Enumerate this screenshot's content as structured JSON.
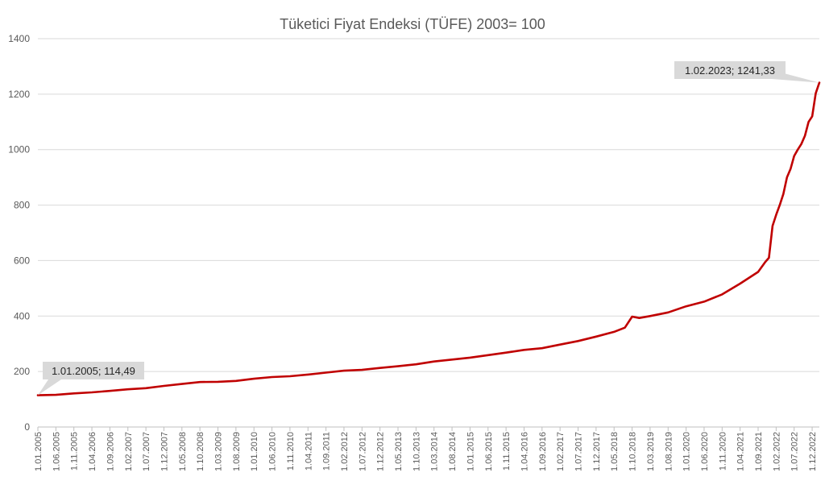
{
  "chart_data": {
    "type": "line",
    "title": "Tüketici Fiyat Endeksi (TÜFE) 2003= 100",
    "xlabel": "",
    "ylabel": "",
    "ylim": [
      0,
      1400
    ],
    "y_ticks": [
      0,
      200,
      400,
      600,
      800,
      1000,
      1200,
      1400
    ],
    "x_tick_labels": [
      "1.01.2005",
      "1.06.2005",
      "1.11.2005",
      "1.04.2006",
      "1.09.2006",
      "1.02.2007",
      "1.07.2007",
      "1.12.2007",
      "1.05.2008",
      "1.10.2008",
      "1.03.2009",
      "1.08.2009",
      "1.01.2010",
      "1.06.2010",
      "1.11.2010",
      "1.04.2011",
      "1.09.2011",
      "1.02.2012",
      "1.07.2012",
      "1.12.2012",
      "1.05.2013",
      "1.10.2013",
      "1.03.2014",
      "1.08.2014",
      "1.01.2015",
      "1.06.2015",
      "1.11.2015",
      "1.04.2016",
      "1.09.2016",
      "1.02.2017",
      "1.07.2017",
      "1.12.2017",
      "1.05.2018",
      "1.10.2018",
      "1.03.2019",
      "1.08.2019",
      "1.01.2020",
      "1.06.2020",
      "1.11.2020",
      "1.04.2021",
      "1.09.2021",
      "1.02.2022",
      "1.07.2022",
      "1.12.2022"
    ],
    "grid": true,
    "legend": "none",
    "line_color": "#c00000",
    "series": [
      {
        "x": [
          "1.01.2005",
          "1.06.2005",
          "1.11.2005",
          "1.04.2006",
          "1.09.2006",
          "1.02.2007",
          "1.07.2007",
          "1.12.2007",
          "1.05.2008",
          "1.10.2008",
          "1.03.2009",
          "1.08.2009",
          "1.01.2010",
          "1.06.2010",
          "1.11.2010",
          "1.04.2011",
          "1.09.2011",
          "1.02.2012",
          "1.07.2012",
          "1.12.2012",
          "1.05.2013",
          "1.10.2013",
          "1.03.2014",
          "1.08.2014",
          "1.01.2015",
          "1.06.2015",
          "1.11.2015",
          "1.04.2016",
          "1.09.2016",
          "1.02.2017",
          "1.07.2017",
          "1.12.2017",
          "1.05.2018",
          "1.08.2018",
          "1.10.2018",
          "1.12.2018",
          "1.03.2019",
          "1.08.2019",
          "1.01.2020",
          "1.06.2020",
          "1.11.2020",
          "1.04.2021",
          "1.09.2021",
          "1.11.2021",
          "1.12.2021",
          "1.01.2022",
          "1.02.2022",
          "1.03.2022",
          "1.04.2022",
          "1.05.2022",
          "1.06.2022",
          "1.07.2022",
          "1.08.2022",
          "1.09.2022",
          "1.10.2022",
          "1.11.2022",
          "1.12.2022",
          "1.01.2023",
          "1.02.2023"
        ],
        "y": [
          114.49,
          116,
          121,
          125,
          130,
          136,
          140,
          148,
          155,
          162,
          163,
          166,
          174,
          180,
          183,
          189,
          196,
          203,
          206,
          213,
          219,
          226,
          236,
          243,
          250,
          259,
          268,
          278,
          284,
          297,
          310,
          326,
          343,
          358,
          398,
          393,
          400,
          413,
          435,
          452,
          478,
          517,
          559,
          595,
          610,
          725,
          765,
          800,
          840,
          900,
          930,
          977,
          1000,
          1020,
          1050,
          1100,
          1120,
          1203,
          1241.33
        ]
      }
    ],
    "annotations": [
      {
        "label": "1.01.2005; 114,49",
        "x": "1.01.2005",
        "y": 114.49
      },
      {
        "label": "1.02.2023; 1241,33",
        "x": "1.02.2023",
        "y": 1241.33
      }
    ]
  }
}
